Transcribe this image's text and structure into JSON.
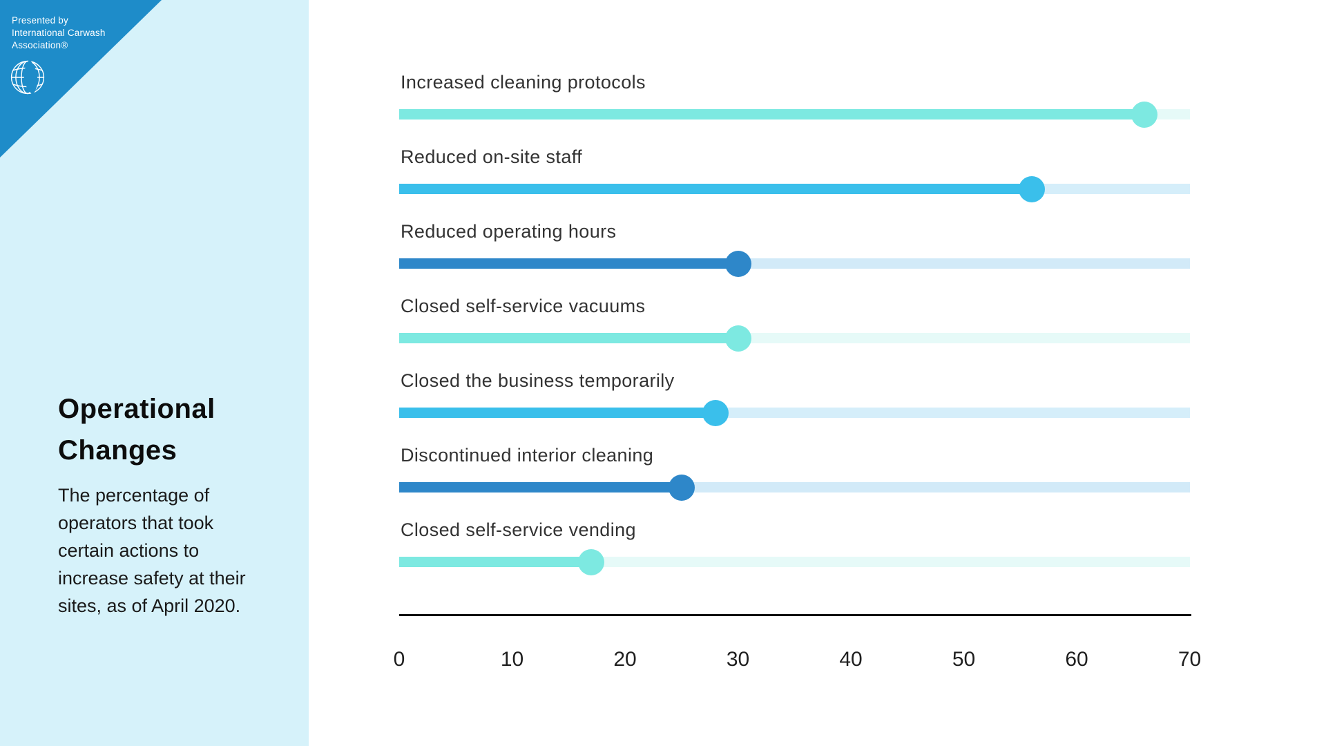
{
  "branding": {
    "presented_by_line1": "Presented by",
    "presented_by_line2": "International Carwash",
    "presented_by_line3": "Association®",
    "logo": "ica-globe-droplet-logo",
    "brand_blue": "#1e8cc9",
    "panel_light_blue": "#d6f2fa"
  },
  "sidebar": {
    "title": "Operational Changes",
    "description": "The percentage of operators that took certain actions to increase safety at their sites, as of April 2020."
  },
  "chart_data": {
    "type": "bar",
    "style": "lollipop",
    "orientation": "horizontal",
    "categories": [
      "Increased cleaning protocols",
      "Reduced on-site staff",
      "Reduced operating hours",
      "Closed self-service vacuums",
      "Closed the business temporarily",
      "Discontinued interior cleaning",
      "Closed self-service vending"
    ],
    "values": [
      66,
      56,
      30,
      30,
      28,
      25,
      17
    ],
    "colors": [
      "#7de9e1",
      "#3abfeb",
      "#2e87c9",
      "#7de9e1",
      "#3abfeb",
      "#2e87c9",
      "#7de9e1"
    ],
    "track_colors": [
      "#e6faf8",
      "#d5eefa",
      "#d2eaf8",
      "#e6faf8",
      "#d5eefa",
      "#d2eaf8",
      "#e6faf8"
    ],
    "xlabel": "",
    "ylabel": "",
    "xlim": [
      0,
      70
    ],
    "xticks": [
      0,
      10,
      20,
      30,
      40,
      50,
      60,
      70
    ],
    "grid": false,
    "legend": false,
    "axis_color": "#111111",
    "unit": "percent"
  }
}
